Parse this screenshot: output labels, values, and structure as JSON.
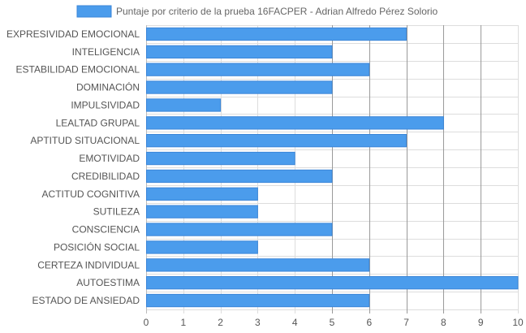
{
  "chart_data": {
    "type": "bar",
    "orientation": "horizontal",
    "title": "",
    "xlabel": "",
    "ylabel": "",
    "xlim": [
      0,
      10
    ],
    "x_ticks": [
      0,
      1,
      2,
      3,
      4,
      5,
      6,
      7,
      8,
      9,
      10
    ],
    "grid": true,
    "legend_position": "top",
    "categories": [
      "EXPRESIVIDAD EMOCIONAL",
      "INTELIGENCIA",
      "ESTABILIDAD EMOCIONAL",
      "DOMINACIÓN",
      "IMPULSIVIDAD",
      "LEALTAD GRUPAL",
      "APTITUD SITUACIONAL",
      "EMOTIVIDAD",
      "CREDIBILIDAD",
      "ACTITUD COGNITIVA",
      "SUTILEZA",
      "CONSCIENCIA",
      "POSICIÓN SOCIAL",
      "CERTEZA INDIVIDUAL",
      "AUTOESTIMA",
      "ESTADO DE ANSIEDAD"
    ],
    "series": [
      {
        "name": "Puntaje por criterio de la prueba 16FACPER - Adrian Alfredo Pérez Solorio",
        "values": [
          7,
          5,
          6,
          5,
          2,
          8,
          7,
          4,
          5,
          3,
          3,
          5,
          3,
          6,
          10,
          6
        ]
      }
    ],
    "colors": {
      "bar_fill": "#4b9cec",
      "bar_stroke": "#3b86d8",
      "grid": "#dddddd",
      "grid_dark": "#9a9a9a"
    }
  }
}
